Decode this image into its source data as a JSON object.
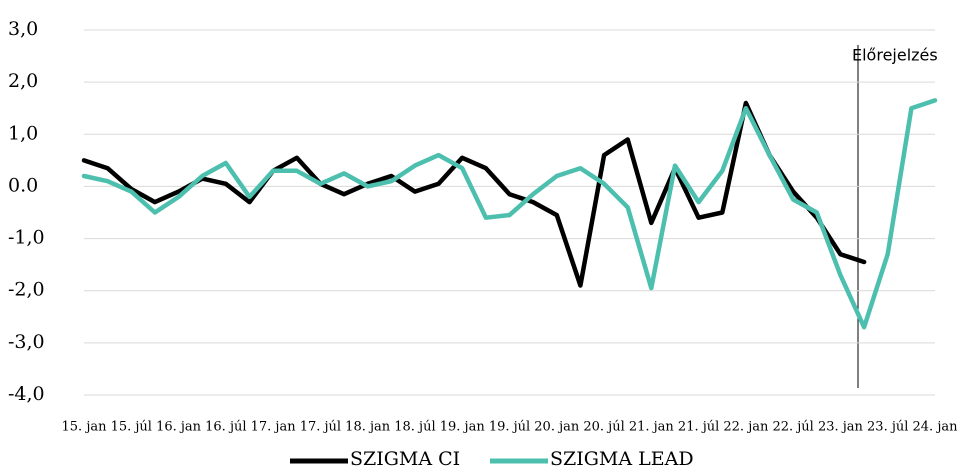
{
  "chart_data": {
    "type": "line",
    "categories": [
      "15. jan",
      null,
      "15. júl",
      null,
      "16. jan",
      null,
      "16. júl",
      null,
      "17. jan",
      null,
      "17. júl",
      null,
      "18. jan",
      null,
      "18. júl",
      null,
      "19. jan",
      null,
      "19. júl",
      null,
      "20. jan",
      null,
      "20. júl",
      null,
      "21. jan",
      null,
      "21. júl",
      null,
      "22. jan",
      null,
      "22. júl",
      null,
      "23. jan",
      null,
      "23. júl",
      null,
      "24. jan"
    ],
    "series": [
      {
        "name": "SZIGMA CI",
        "color": "#000000",
        "values": [
          0.5,
          0.35,
          -0.05,
          -0.3,
          -0.1,
          0.15,
          0.05,
          -0.3,
          0.3,
          0.55,
          0.05,
          -0.15,
          0.05,
          0.2,
          -0.1,
          0.05,
          0.55,
          0.35,
          -0.15,
          -0.3,
          -0.55,
          -1.9,
          0.6,
          0.9,
          -0.7,
          0.35,
          -0.6,
          -0.5,
          1.6,
          0.6,
          -0.1,
          -0.6,
          -1.3,
          -1.45,
          null,
          null,
          null
        ]
      },
      {
        "name": "SZIGMA LEAD",
        "color": "#4dbfae",
        "values": [
          0.2,
          0.1,
          -0.1,
          -0.5,
          -0.2,
          0.2,
          0.45,
          -0.2,
          0.3,
          0.3,
          0.05,
          0.25,
          0.0,
          0.1,
          0.4,
          0.6,
          0.35,
          -0.6,
          -0.55,
          -0.15,
          0.2,
          0.35,
          0.05,
          -0.4,
          -1.95,
          0.4,
          -0.3,
          0.3,
          1.5,
          0.6,
          -0.25,
          -0.5,
          -1.7,
          -2.7,
          -1.3,
          1.5,
          1.65
        ]
      }
    ],
    "ylim": [
      -4,
      3
    ],
    "yticks": [
      {
        "value": -4,
        "label": "-4,0"
      },
      {
        "value": -3,
        "label": "-3,0"
      },
      {
        "value": -2,
        "label": "-2,0"
      },
      {
        "value": -1,
        "label": "-1,0"
      },
      {
        "value": 0,
        "label": "0.0"
      },
      {
        "value": 1,
        "label": "1,0"
      },
      {
        "value": 2,
        "label": "2,0"
      },
      {
        "value": 3,
        "label": "3,0"
      }
    ],
    "grid": true,
    "annotation": "Előrejelzés"
  }
}
